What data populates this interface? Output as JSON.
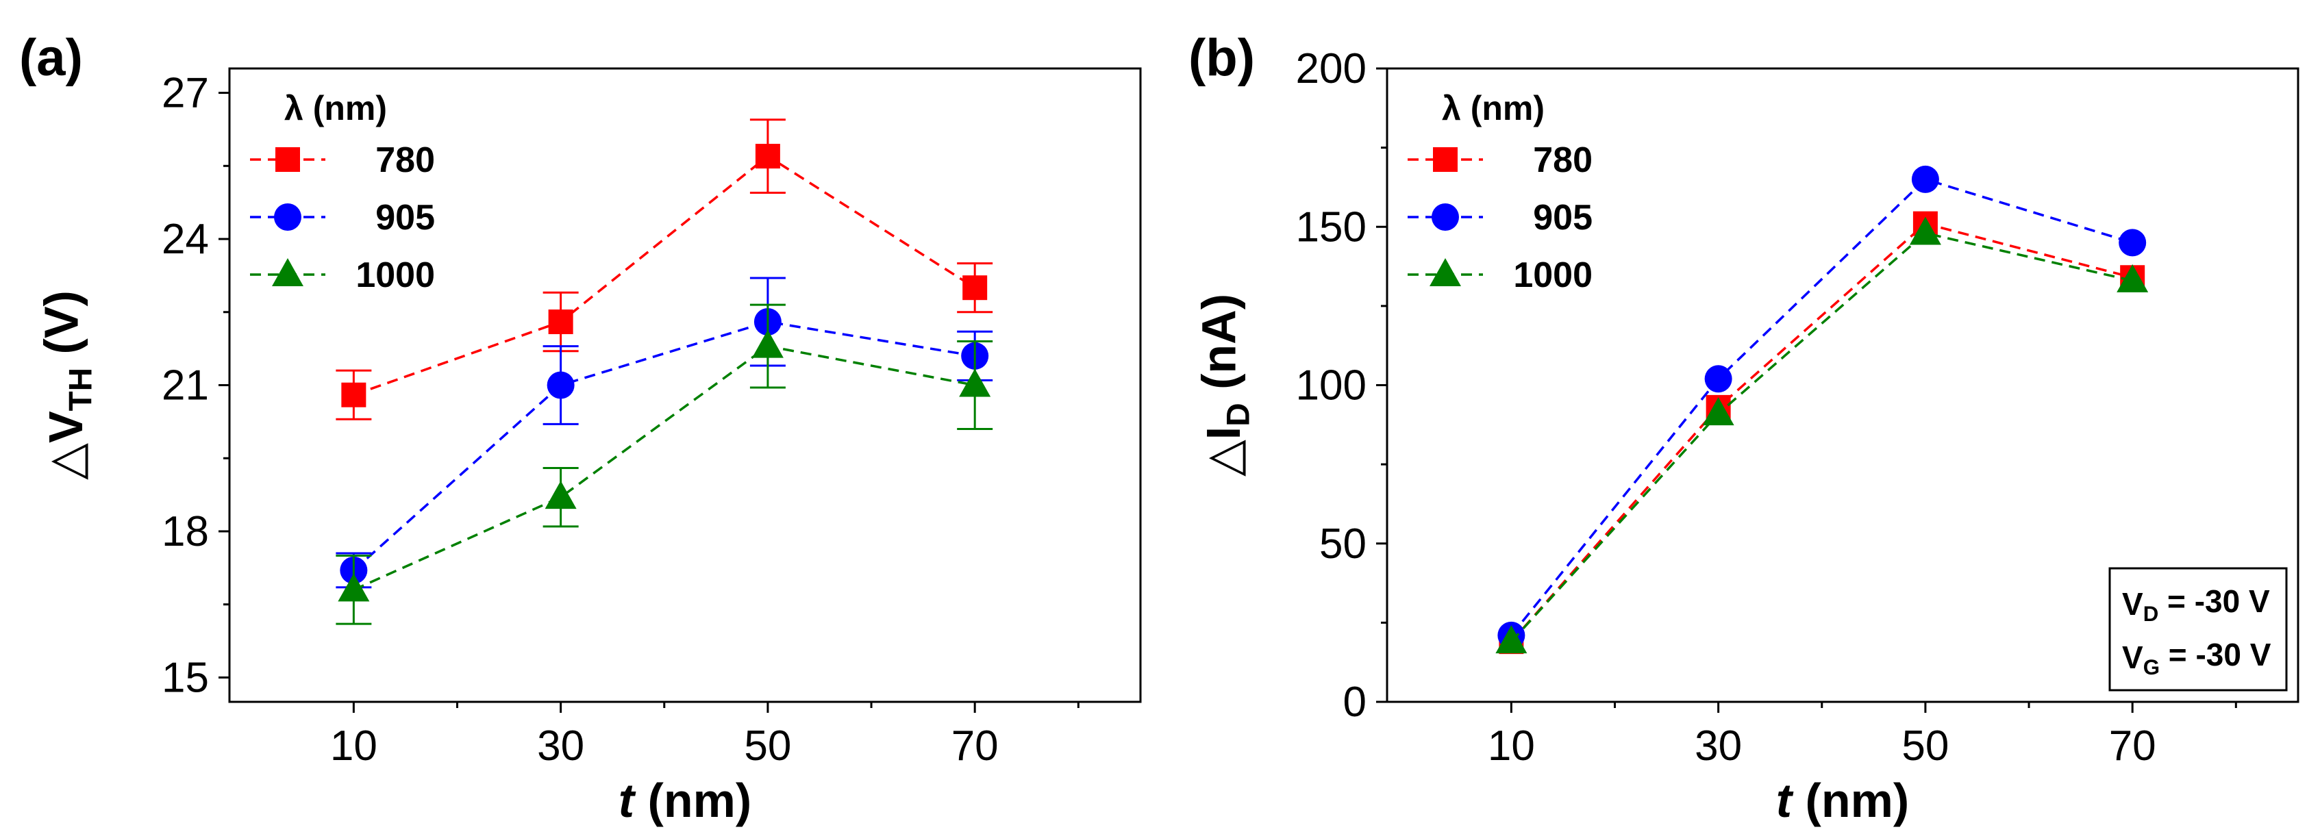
{
  "chart_data": [
    {
      "type": "scatter",
      "panel_label": "(a)",
      "xlabel": "t (nm)",
      "ylabel": "△V_TH (V)",
      "x": [
        10,
        30,
        50,
        70
      ],
      "xticks": [
        "10",
        "30",
        "50",
        "70"
      ],
      "xlim": [
        -2,
        86
      ],
      "ylim": [
        14.5,
        27.5
      ],
      "yticks": [
        "15",
        "18",
        "21",
        "24",
        "27"
      ],
      "legend_title": "λ (nm)",
      "legend_position": "top-left",
      "series": [
        {
          "name": "780",
          "color": "#ff0000",
          "marker": "square",
          "values": [
            20.8,
            22.3,
            25.7,
            23.0
          ],
          "error": [
            0.5,
            0.6,
            0.75,
            0.5
          ]
        },
        {
          "name": "905",
          "color": "#0000ff",
          "marker": "circle",
          "values": [
            17.2,
            21.0,
            22.3,
            21.6
          ],
          "error": [
            0.35,
            0.8,
            0.9,
            0.5
          ]
        },
        {
          "name": "1000",
          "color": "#008000",
          "marker": "triangle",
          "values": [
            16.8,
            18.7,
            21.8,
            21.0
          ],
          "error": [
            0.7,
            0.6,
            0.85,
            0.9
          ]
        }
      ]
    },
    {
      "type": "line",
      "panel_label": "(b)",
      "xlabel": "t (nm)",
      "ylabel": "△I_D (nA)",
      "x": [
        10,
        30,
        50,
        70
      ],
      "xticks": [
        "10",
        "30",
        "50",
        "70"
      ],
      "xlim": [
        -2,
        86
      ],
      "ylim": [
        0,
        200
      ],
      "yticks": [
        "0",
        "50",
        "100",
        "150",
        "200"
      ],
      "legend_title": "λ (nm)",
      "legend_position": "top-left",
      "conditions": [
        "V_D = -30 V",
        "V_G = -30 V"
      ],
      "series": [
        {
          "name": "780",
          "color": "#ff0000",
          "marker": "square",
          "values": [
            19,
            93,
            151,
            134
          ]
        },
        {
          "name": "905",
          "color": "#0000ff",
          "marker": "circle",
          "values": [
            21,
            102,
            165,
            145
          ]
        },
        {
          "name": "1000",
          "color": "#008000",
          "marker": "triangle",
          "values": [
            19,
            91,
            148,
            133
          ]
        }
      ]
    }
  ]
}
